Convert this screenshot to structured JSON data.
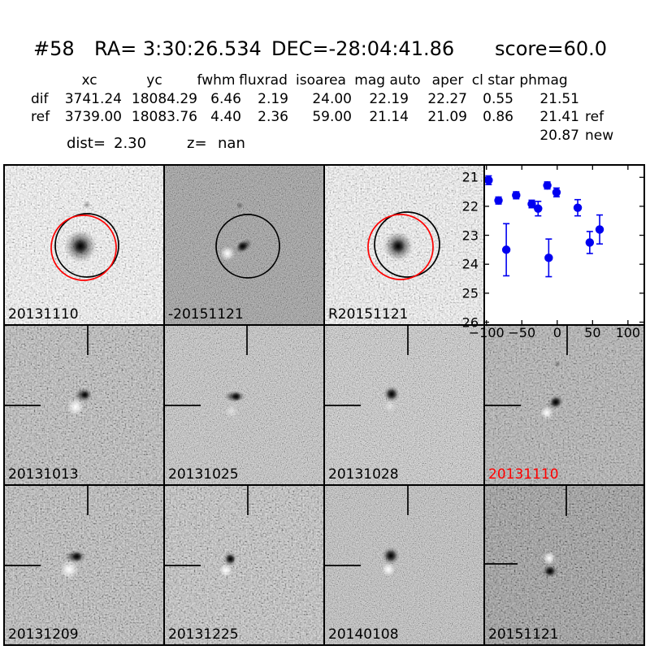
{
  "header": {
    "id": "#58",
    "ra": "RA= 3:30:26.534",
    "dec": "DEC=-28:04:41.86",
    "score": "score=60.0"
  },
  "photometry": {
    "columns": [
      "xc",
      "yc",
      "fwhm",
      "fluxrad",
      "isoarea",
      "mag auto",
      "aper",
      "cl star",
      "phmag"
    ],
    "rows": [
      {
        "name": "dif",
        "values": [
          "3741.24",
          "18084.29",
          "6.46",
          "2.19",
          "24.00",
          "22.19",
          "22.27",
          "0.55",
          "21.51"
        ],
        "suffix": ""
      },
      {
        "name": "ref",
        "values": [
          "3739.00",
          "18083.76",
          "4.40",
          "2.36",
          "59.00",
          "21.14",
          "21.09",
          "0.86",
          "21.41"
        ],
        "suffix": "ref"
      }
    ],
    "extra": {
      "value": "20.87",
      "suffix": "new"
    },
    "dist_label": "dist=",
    "dist_value": "2.30",
    "z_label": "z=",
    "z_value": "nan"
  },
  "panels": [
    {
      "label": "20131110",
      "kind": "new image with apertures",
      "label_color": "#000000"
    },
    {
      "label": "-20151121",
      "kind": "difference image",
      "label_color": "#000000"
    },
    {
      "label": "R20151121",
      "kind": "reference image",
      "label_color": "#000000"
    },
    {
      "label": "20131013",
      "kind": "difference epoch",
      "label_color": "#000000"
    },
    {
      "label": "20131025",
      "kind": "difference epoch",
      "label_color": "#000000"
    },
    {
      "label": "20131028",
      "kind": "difference epoch",
      "label_color": "#000000"
    },
    {
      "label": "20131110",
      "kind": "difference epoch (current)",
      "label_color": "#ff0000"
    },
    {
      "label": "20131209",
      "kind": "difference epoch",
      "label_color": "#000000"
    },
    {
      "label": "20131225",
      "kind": "difference epoch",
      "label_color": "#000000"
    },
    {
      "label": "20140108",
      "kind": "difference epoch",
      "label_color": "#000000"
    },
    {
      "label": "20151121",
      "kind": "difference epoch",
      "label_color": "#000000"
    }
  ],
  "colors": {
    "ring_black": "#000000",
    "ring_red": "#ff0000",
    "marker_blue": "#0000f0",
    "label_red": "#ff0000"
  },
  "chart_data": {
    "type": "scatter",
    "title": "",
    "xlabel": "",
    "ylabel": "",
    "x": [
      -97,
      -83,
      -72,
      -58,
      -36,
      -27,
      -14,
      -12,
      -1,
      29,
      46,
      60
    ],
    "y": [
      21.1,
      21.8,
      23.5,
      21.62,
      21.92,
      22.08,
      21.28,
      23.78,
      21.52,
      22.05,
      23.25,
      22.8
    ],
    "yerr": [
      0.15,
      0.12,
      0.9,
      0.12,
      0.13,
      0.25,
      0.12,
      0.65,
      0.15,
      0.28,
      0.38,
      0.5
    ],
    "xticks": [
      -100,
      -50,
      0,
      50,
      100
    ],
    "xtick_labels": [
      "−100",
      "−50",
      "0",
      "50",
      "100"
    ],
    "yticks": [
      21,
      22,
      23,
      24,
      25,
      26
    ],
    "ytick_labels": [
      "21",
      "22",
      "23",
      "24",
      "25",
      "26"
    ],
    "xlim": [
      -102,
      122
    ],
    "ylim_top": 20.6,
    "ylim_bottom": 26.07,
    "y_axis_inverted": true,
    "grid": false,
    "legend": null,
    "marker": "o",
    "marker_color": "#0000f0"
  }
}
